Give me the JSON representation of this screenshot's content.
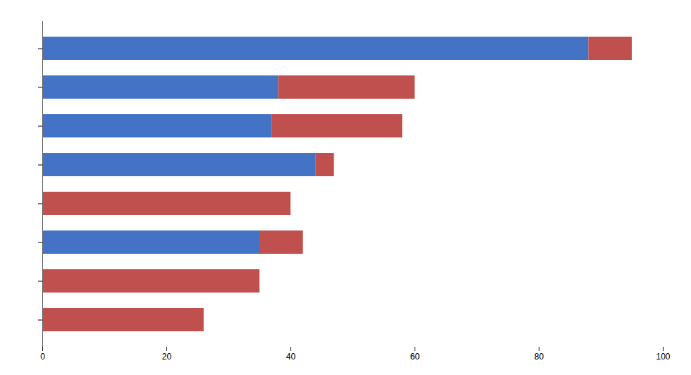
{
  "chart_data": {
    "type": "bar",
    "orientation": "horizontal",
    "stacked": true,
    "categories": [
      null,
      null,
      null,
      null,
      null,
      null,
      null,
      null
    ],
    "series": [
      {
        "color": "#4472C4",
        "values": [
          88,
          38,
          37,
          44,
          0,
          35,
          0,
          0
        ]
      },
      {
        "color": "#C0504D",
        "values": [
          7,
          22,
          21,
          3,
          40,
          7,
          35,
          26
        ]
      }
    ],
    "xlim": [
      0,
      100
    ],
    "xticks": [
      0,
      20,
      40,
      60,
      80,
      100
    ],
    "grid": false,
    "tick_labels": "x"
  }
}
